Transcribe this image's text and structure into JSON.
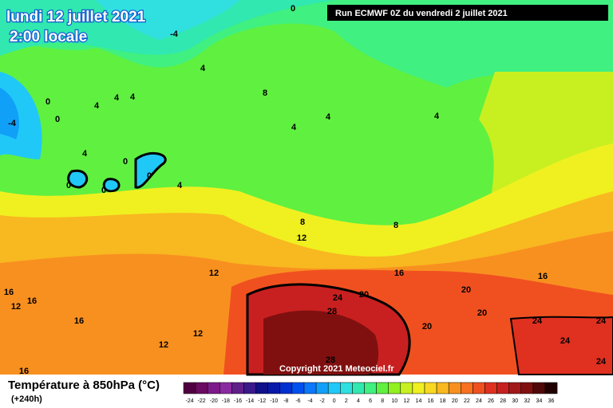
{
  "header": {
    "date": "lundi 12 juillet 2021",
    "time": "2:00 locale",
    "run": "Run ECMWF 0Z du vendredi 2 juillet 2021"
  },
  "map": {
    "copyright": "Copyright 2021 Meteociel.fr",
    "contour_labels": [
      "0",
      "-4",
      "-4",
      "0",
      "0",
      "4",
      "4",
      "4",
      "4",
      "8",
      "4",
      "4",
      "4",
      "0",
      "0",
      "0",
      "0",
      "4",
      "4",
      "8",
      "12",
      "8",
      "12",
      "16",
      "16",
      "16",
      "16",
      "16",
      "12",
      "24",
      "20",
      "20",
      "28",
      "20",
      "20",
      "24",
      "24",
      "24",
      "24",
      "12",
      "12",
      "28",
      "16"
    ]
  },
  "legend": {
    "title": "Température à 850hPa (°C)",
    "subtitle": "(+240h)",
    "values": [
      -24,
      -22,
      -20,
      -18,
      -16,
      -14,
      -12,
      -10,
      -8,
      -6,
      -4,
      -2,
      0,
      2,
      4,
      6,
      8,
      10,
      12,
      14,
      16,
      18,
      20,
      22,
      24,
      26,
      28,
      30,
      32,
      34,
      36
    ],
    "colors": [
      "#500040",
      "#6a0a60",
      "#7d1a8a",
      "#8a2aa0",
      "#60208a",
      "#3a1a8a",
      "#10108a",
      "#0818a8",
      "#0030d0",
      "#0050f0",
      "#0a78f8",
      "#10a0f8",
      "#20c8f8",
      "#30e0e0",
      "#30e8b0",
      "#40f080",
      "#60f040",
      "#90f020",
      "#c8f020",
      "#f0f020",
      "#f8d820",
      "#f8b820",
      "#f89020",
      "#f87020",
      "#f05020",
      "#e03020",
      "#c82020",
      "#a01818",
      "#801010",
      "#500808",
      "#200000"
    ]
  }
}
